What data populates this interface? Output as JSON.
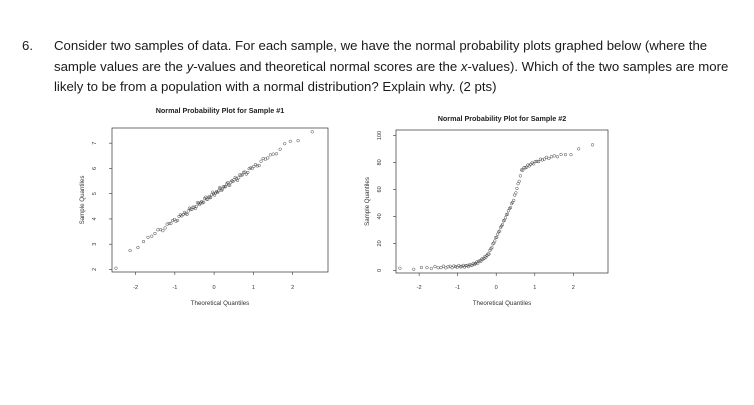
{
  "question": {
    "number": "6.",
    "text_part1": "Consider two samples of data. For each sample, we have the normal probability plots graphed below (where the sample values are the ",
    "y_word": "y",
    "text_part2": "-values and theoretical normal scores are the ",
    "x_word": "x",
    "text_part3": "-values). Which of the two samples are more likely to be from a population with a normal distribution? Explain why. (2 pts)"
  },
  "chart_data": [
    {
      "type": "scatter",
      "title": "Normal Probability Plot for Sample #1",
      "xlabel": "Theoretical Quantiles",
      "ylabel": "Sample Quantiles",
      "xlim": [
        -2.6,
        2.9
      ],
      "ylim": [
        1.9,
        7.6
      ],
      "xticks": [
        "-2",
        "-1",
        "0",
        "1",
        "2"
      ],
      "xtick_values": [
        -2,
        -1,
        0,
        1,
        2
      ],
      "yticks": [
        "2",
        "3",
        "4",
        "5",
        "6",
        "7"
      ],
      "ytick_values": [
        2,
        3,
        4,
        5,
        6,
        7
      ],
      "pattern": "linear",
      "n_points": 100,
      "intercept": 5.0,
      "slope": 1.05
    },
    {
      "type": "scatter",
      "title": "Normal Probability Plot for Sample #2",
      "xlabel": "Theoretical Quantiles",
      "ylabel": "Sample Quantiles",
      "xlim": [
        -2.6,
        2.9
      ],
      "ylim": [
        -2,
        104
      ],
      "xticks": [
        "-2",
        "-1",
        "0",
        "1",
        "2"
      ],
      "xtick_values": [
        -2,
        -1,
        0,
        1,
        2
      ],
      "yticks": [
        "0",
        "20",
        "40",
        "60",
        "80",
        "100"
      ],
      "ytick_values": [
        0,
        20,
        40,
        60,
        80,
        100
      ],
      "pattern": "curved",
      "n_points": 100
    }
  ]
}
